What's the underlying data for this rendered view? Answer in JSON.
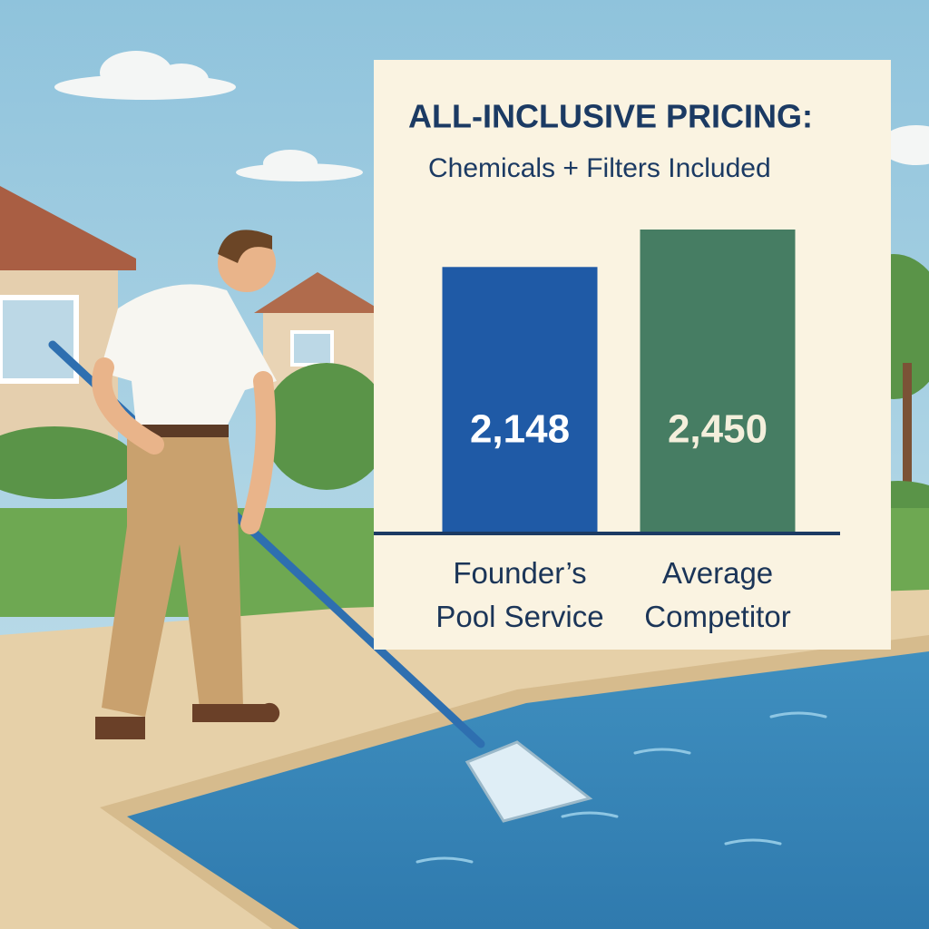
{
  "chart_data": {
    "type": "bar",
    "title": "ALL-INCLUSIVE PRICING:",
    "subtitle": "Chemicals + Filters Included",
    "categories": [
      "Founder’s Pool Service",
      "Average Competitor"
    ],
    "values": [
      2148,
      2450
    ],
    "value_labels": [
      "2,148",
      "2,450"
    ],
    "colors": [
      "#1f5aa6",
      "#467d63"
    ]
  }
}
